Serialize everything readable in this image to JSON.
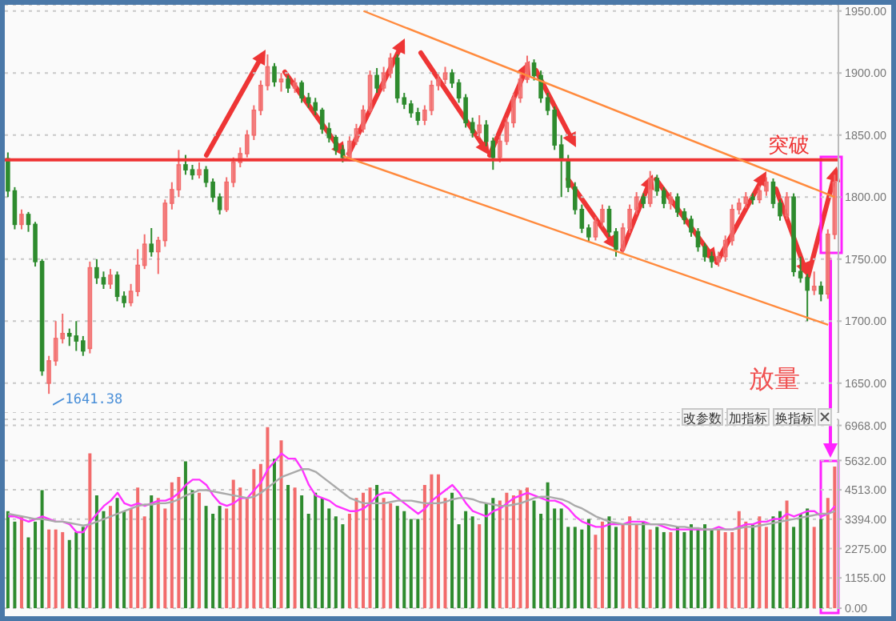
{
  "chart_data": [
    {
      "type": "candlestick",
      "categories": [
        null,
        null,
        null,
        null,
        null,
        null,
        null,
        null,
        null,
        null,
        null,
        null,
        null,
        null,
        null,
        null,
        null,
        null,
        null,
        null,
        null,
        null,
        null,
        null,
        null,
        null,
        null,
        null,
        null,
        null,
        null,
        null,
        null,
        null,
        null,
        null,
        null,
        null,
        null,
        null,
        null,
        null,
        null,
        null,
        null,
        null,
        null,
        null,
        null,
        null,
        null,
        null,
        null,
        null,
        null,
        null,
        null,
        null,
        null,
        null,
        null,
        null,
        null,
        null,
        null,
        null,
        null,
        null,
        null,
        null,
        null,
        null,
        null,
        null,
        null,
        null,
        null,
        null,
        null,
        null,
        null,
        null,
        null,
        null,
        null,
        null,
        null,
        null,
        null,
        null,
        null,
        null,
        null,
        null,
        null,
        null,
        null,
        null,
        null,
        null,
        null,
        null,
        null,
        null,
        null,
        null,
        null,
        null,
        null,
        null,
        null,
        null,
        null,
        null,
        null,
        null,
        null,
        null,
        null,
        null,
        null,
        null
      ],
      "ohlc": [
        [
          1831,
          1836,
          1800,
          1805
        ],
        [
          1805,
          1808,
          1774,
          1778
        ],
        [
          1778,
          1790,
          1774,
          1786
        ],
        [
          1786,
          1788,
          1772,
          1778
        ],
        [
          1778,
          1780,
          1744,
          1748
        ],
        [
          1748,
          1750,
          1656,
          1660
        ],
        [
          1650,
          1672,
          1641.38,
          1668
        ],
        [
          1668,
          1700,
          1664,
          1686
        ],
        [
          1686,
          1706,
          1682,
          1690
        ],
        [
          1690,
          1694,
          1680,
          1688
        ],
        [
          1688,
          1700,
          1676,
          1684
        ],
        [
          1684,
          1688,
          1672,
          1676
        ],
        [
          1678,
          1748,
          1674,
          1743
        ],
        [
          1743,
          1750,
          1730,
          1735
        ],
        [
          1735,
          1740,
          1726,
          1730
        ],
        [
          1730,
          1742,
          1726,
          1737
        ],
        [
          1737,
          1740,
          1716,
          1720
        ],
        [
          1720,
          1724,
          1711,
          1715
        ],
        [
          1715,
          1730,
          1712,
          1724
        ],
        [
          1724,
          1758,
          1720,
          1745
        ],
        [
          1745,
          1770,
          1742,
          1762
        ],
        [
          1762,
          1775,
          1752,
          1756
        ],
        [
          1756,
          1768,
          1738,
          1765
        ],
        [
          1765,
          1798,
          1760,
          1795
        ],
        [
          1795,
          1812,
          1790,
          1806
        ],
        [
          1806,
          1838,
          1800,
          1826
        ],
        [
          1826,
          1834,
          1818,
          1822
        ],
        [
          1822,
          1826,
          1814,
          1818
        ],
        [
          1818,
          1828,
          1815,
          1822
        ],
        [
          1822,
          1825,
          1808,
          1812
        ],
        [
          1812,
          1815,
          1796,
          1800
        ],
        [
          1800,
          1803,
          1786,
          1790
        ],
        [
          1790,
          1816,
          1788,
          1812
        ],
        [
          1812,
          1832,
          1808,
          1828
        ],
        [
          1828,
          1840,
          1824,
          1835
        ],
        [
          1835,
          1854,
          1832,
          1850
        ],
        [
          1850,
          1874,
          1846,
          1870
        ],
        [
          1870,
          1894,
          1866,
          1890
        ],
        [
          1890,
          1915,
          1886,
          1905
        ],
        [
          1905,
          1908,
          1889,
          1893
        ],
        [
          1893,
          1900,
          1885,
          1895
        ],
        [
          1895,
          1898,
          1884,
          1888
        ],
        [
          1888,
          1896,
          1884,
          1892
        ],
        [
          1892,
          1894,
          1876,
          1880
        ],
        [
          1880,
          1884,
          1872,
          1876
        ],
        [
          1876,
          1880,
          1866,
          1870
        ],
        [
          1870,
          1872,
          1851,
          1855
        ],
        [
          1855,
          1860,
          1844,
          1848
        ],
        [
          1848,
          1850,
          1834,
          1838
        ],
        [
          1838,
          1842,
          1828,
          1832
        ],
        [
          1832,
          1849,
          1829,
          1845
        ],
        [
          1845,
          1859,
          1842,
          1855
        ],
        [
          1855,
          1874,
          1852,
          1870
        ],
        [
          1870,
          1902,
          1868,
          1898
        ],
        [
          1898,
          1904,
          1884,
          1888
        ],
        [
          1888,
          1905,
          1885,
          1900
        ],
        [
          1900,
          1916,
          1896,
          1912
        ],
        [
          1912,
          1915,
          1876,
          1880
        ],
        [
          1880,
          1884,
          1871,
          1875
        ],
        [
          1875,
          1878,
          1864,
          1868
        ],
        [
          1868,
          1872,
          1858,
          1862
        ],
        [
          1862,
          1874,
          1858,
          1870
        ],
        [
          1870,
          1894,
          1866,
          1890
        ],
        [
          1890,
          1899,
          1886,
          1895
        ],
        [
          1895,
          1905,
          1891,
          1900
        ],
        [
          1900,
          1903,
          1888,
          1892
        ],
        [
          1892,
          1895,
          1876,
          1880
        ],
        [
          1880,
          1883,
          1856,
          1860
        ],
        [
          1860,
          1864,
          1848,
          1852
        ],
        [
          1852,
          1866,
          1848,
          1858
        ],
        [
          1858,
          1862,
          1841,
          1845
        ],
        [
          1845,
          1848,
          1822,
          1832
        ],
        [
          1832,
          1849,
          1828,
          1845
        ],
        [
          1845,
          1864,
          1842,
          1860
        ],
        [
          1860,
          1884,
          1856,
          1880
        ],
        [
          1880,
          1899,
          1876,
          1895
        ],
        [
          1895,
          1914,
          1892,
          1908
        ],
        [
          1908,
          1911,
          1894,
          1898
        ],
        [
          1898,
          1902,
          1876,
          1880
        ],
        [
          1880,
          1884,
          1866,
          1870
        ],
        [
          1870,
          1873,
          1838,
          1842
        ],
        [
          1842,
          1850,
          1800,
          1830
        ],
        [
          1830,
          1834,
          1804,
          1808
        ],
        [
          1808,
          1812,
          1786,
          1790
        ],
        [
          1790,
          1794,
          1771,
          1775
        ],
        [
          1775,
          1778,
          1764,
          1768
        ],
        [
          1768,
          1784,
          1765,
          1780
        ],
        [
          1780,
          1794,
          1776,
          1790
        ],
        [
          1790,
          1793,
          1768,
          1772
        ],
        [
          1772,
          1775,
          1752,
          1758
        ],
        [
          1758,
          1779,
          1755,
          1775
        ],
        [
          1775,
          1794,
          1771,
          1790
        ],
        [
          1790,
          1804,
          1786,
          1800
        ],
        [
          1800,
          1803,
          1791,
          1795
        ],
        [
          1795,
          1821,
          1792,
          1815
        ],
        [
          1815,
          1818,
          1801,
          1805
        ],
        [
          1805,
          1808,
          1791,
          1795
        ],
        [
          1795,
          1804,
          1790,
          1800
        ],
        [
          1800,
          1803,
          1784,
          1788
        ],
        [
          1788,
          1791,
          1778,
          1782
        ],
        [
          1782,
          1785,
          1768,
          1772
        ],
        [
          1772,
          1775,
          1756,
          1760
        ],
        [
          1760,
          1763,
          1748,
          1752
        ],
        [
          1752,
          1756,
          1743,
          1748
        ],
        [
          1748,
          1756,
          1744,
          1752
        ],
        [
          1752,
          1769,
          1748,
          1765
        ],
        [
          1765,
          1794,
          1761,
          1790
        ],
        [
          1790,
          1799,
          1786,
          1795
        ],
        [
          1795,
          1804,
          1791,
          1800
        ],
        [
          1800,
          1803,
          1794,
          1798
        ],
        [
          1798,
          1809,
          1795,
          1805
        ],
        [
          1805,
          1816,
          1801,
          1812
        ],
        [
          1812,
          1815,
          1791,
          1795
        ],
        [
          1795,
          1798,
          1781,
          1785
        ],
        [
          1785,
          1804,
          1782,
          1800
        ],
        [
          1800,
          1803,
          1736,
          1740
        ],
        [
          1740,
          1752,
          1731,
          1735
        ],
        [
          1735,
          1738,
          1700,
          1725
        ],
        [
          1725,
          1740,
          1721,
          1728
        ],
        [
          1728,
          1732,
          1716,
          1722
        ],
        [
          1722,
          1774,
          1718,
          1770
        ],
        [
          1770,
          1818,
          1766,
          1812
        ]
      ],
      "colors": [
        "#2e8b2e",
        "#2e8b2e",
        "#f26b6b",
        "#2e8b2e",
        "#2e8b2e",
        "#2e8b2e",
        "#f26b6b",
        "#f26b6b",
        "#f26b6b",
        "#2e8b2e",
        "#2e8b2e",
        "#2e8b2e",
        "#f26b6b",
        "#2e8b2e",
        "#2e8b2e",
        "#f26b6b",
        "#2e8b2e",
        "#2e8b2e",
        "#f26b6b",
        "#f26b6b",
        "#f26b6b",
        "#2e8b2e",
        "#f26b6b",
        "#f26b6b",
        "#f26b6b",
        "#f26b6b",
        "#2e8b2e",
        "#2e8b2e",
        "#f26b6b",
        "#2e8b2e",
        "#2e8b2e",
        "#2e8b2e",
        "#f26b6b",
        "#f26b6b",
        "#f26b6b",
        "#f26b6b",
        "#f26b6b",
        "#f26b6b",
        "#f26b6b",
        "#2e8b2e",
        "#f26b6b",
        "#2e8b2e",
        "#f26b6b",
        "#2e8b2e",
        "#2e8b2e",
        "#2e8b2e",
        "#2e8b2e",
        "#2e8b2e",
        "#2e8b2e",
        "#2e8b2e",
        "#f26b6b",
        "#f26b6b",
        "#f26b6b",
        "#f26b6b",
        "#2e8b2e",
        "#f26b6b",
        "#f26b6b",
        "#2e8b2e",
        "#2e8b2e",
        "#2e8b2e",
        "#2e8b2e",
        "#f26b6b",
        "#f26b6b",
        "#f26b6b",
        "#f26b6b",
        "#2e8b2e",
        "#2e8b2e",
        "#2e8b2e",
        "#2e8b2e",
        "#f26b6b",
        "#2e8b2e",
        "#2e8b2e",
        "#f26b6b",
        "#f26b6b",
        "#f26b6b",
        "#f26b6b",
        "#f26b6b",
        "#2e8b2e",
        "#2e8b2e",
        "#2e8b2e",
        "#2e8b2e",
        "#2e8b2e",
        "#2e8b2e",
        "#2e8b2e",
        "#2e8b2e",
        "#2e8b2e",
        "#f26b6b",
        "#f26b6b",
        "#2e8b2e",
        "#2e8b2e",
        "#f26b6b",
        "#f26b6b",
        "#f26b6b",
        "#2e8b2e",
        "#f26b6b",
        "#2e8b2e",
        "#2e8b2e",
        "#f26b6b",
        "#2e8b2e",
        "#2e8b2e",
        "#2e8b2e",
        "#2e8b2e",
        "#2e8b2e",
        "#2e8b2e",
        "#f26b6b",
        "#f26b6b",
        "#f26b6b",
        "#f26b6b",
        "#f26b6b",
        "#2e8b2e",
        "#f26b6b",
        "#f26b6b",
        "#2e8b2e",
        "#2e8b2e",
        "#f26b6b",
        "#2e8b2e",
        "#2e8b2e",
        "#2e8b2e",
        "#f26b6b",
        "#2e8b2e",
        "#f26b6b",
        "#f26b6b"
      ],
      "series": [
        {
          "type": "line",
          "color": "#ff8a3d",
          "values": [
            null,
            null,
            null,
            null,
            null,
            null,
            null,
            null,
            null,
            null,
            null,
            null,
            null,
            null,
            null,
            null,
            null,
            null,
            null,
            null,
            null,
            null,
            null,
            null,
            null,
            null,
            null,
            null,
            null,
            null,
            null,
            null,
            null,
            null,
            null,
            null,
            null,
            null,
            null,
            null,
            null,
            null,
            null,
            null,
            null,
            null,
            null,
            null,
            null,
            null,
            null,
            null,
            1950,
            null,
            null,
            null,
            null,
            null,
            null,
            null,
            null,
            null,
            null,
            null,
            null,
            null,
            null,
            null,
            null,
            null,
            null,
            null,
            null,
            null,
            null,
            null,
            null,
            null,
            null,
            null,
            null,
            null,
            null,
            null,
            null,
            null,
            null,
            null,
            null,
            null,
            null,
            null,
            null,
            null,
            null,
            null,
            null,
            null,
            null,
            null,
            null,
            null,
            null,
            null,
            null,
            null,
            null,
            null,
            null,
            null,
            null,
            null,
            null,
            null,
            null,
            null,
            null,
            null,
            null,
            null,
            null,
            1800
          ]
        },
        {
          "type": "line",
          "color": "#ff8a3d",
          "values": [
            null,
            null,
            null,
            null,
            null,
            null,
            null,
            null,
            null,
            null,
            null,
            null,
            null,
            null,
            null,
            null,
            null,
            null,
            null,
            null,
            null,
            null,
            null,
            null,
            null,
            null,
            null,
            null,
            null,
            null,
            null,
            null,
            null,
            null,
            null,
            null,
            null,
            null,
            null,
            null,
            null,
            null,
            null,
            null,
            null,
            null,
            null,
            null,
            null,
            1833,
            null,
            null,
            null,
            null,
            null,
            null,
            null,
            null,
            null,
            null,
            null,
            null,
            null,
            null,
            null,
            null,
            null,
            null,
            null,
            null,
            null,
            null,
            null,
            null,
            null,
            null,
            null,
            null,
            null,
            null,
            null,
            null,
            null,
            null,
            null,
            null,
            null,
            null,
            null,
            null,
            null,
            null,
            null,
            null,
            null,
            null,
            null,
            null,
            null,
            null,
            null,
            null,
            null,
            null,
            null,
            null,
            null,
            null,
            null,
            null,
            null,
            null,
            null,
            null,
            null,
            null,
            null,
            null,
            null,
            null,
            1697,
            null
          ]
        }
      ],
      "ylim": [
        1626,
        1955
      ],
      "yticks": [
        {
          "value": 1650,
          "label": "1650.00"
        },
        {
          "value": 1700,
          "label": "1700.00"
        },
        {
          "value": 1750,
          "label": "1750.00"
        },
        {
          "value": 1800,
          "label": "1800.00"
        },
        {
          "value": 1850,
          "label": "1850.00"
        },
        {
          "value": 1900,
          "label": "1900.00"
        },
        {
          "value": 1950,
          "label": "1950.00"
        }
      ],
      "grid": "y",
      "tick_labels": "y",
      "ref_lines": [
        {
          "axis": "y",
          "value": 1830,
          "label": "突破",
          "color": "#ee3333"
        }
      ],
      "annotations": [
        "1641.38"
      ]
    },
    {
      "type": "bar",
      "categories": [
        null,
        null,
        null,
        null,
        null,
        null,
        null,
        null,
        null,
        null,
        null,
        null,
        null,
        null,
        null,
        null,
        null,
        null,
        null,
        null,
        null,
        null,
        null,
        null,
        null,
        null,
        null,
        null,
        null,
        null,
        null,
        null,
        null,
        null,
        null,
        null,
        null,
        null,
        null,
        null,
        null,
        null,
        null,
        null,
        null,
        null,
        null,
        null,
        null,
        null,
        null,
        null,
        null,
        null,
        null,
        null,
        null,
        null,
        null,
        null,
        null,
        null,
        null,
        null,
        null,
        null,
        null,
        null,
        null,
        null,
        null,
        null,
        null,
        null,
        null,
        null,
        null,
        null,
        null,
        null,
        null,
        null,
        null,
        null,
        null,
        null,
        null,
        null,
        null,
        null,
        null,
        null,
        null,
        null,
        null,
        null,
        null,
        null,
        null,
        null,
        null,
        null,
        null,
        null,
        null,
        null,
        null,
        null,
        null,
        null,
        null,
        null,
        null,
        null,
        null,
        null,
        null,
        null,
        null,
        null,
        null,
        null
      ],
      "series": [
        {
          "values": [
            3700,
            3300,
            3500,
            2700,
            3300,
            4500,
            3000,
            3000,
            2900,
            2600,
            2900,
            3100,
            5900,
            4300,
            3700,
            3900,
            4200,
            3700,
            3800,
            4600,
            3500,
            4300,
            4200,
            3800,
            4800,
            5000,
            5600,
            4500,
            4400,
            3900,
            3600,
            3900,
            3800,
            4900,
            4600,
            4200,
            5300,
            5500,
            6900,
            5700,
            6400,
            4700,
            4600,
            4300,
            3600,
            4400,
            4200,
            3800,
            3500,
            3200,
            3600,
            4200,
            4400,
            4600,
            4700,
            4200,
            4000,
            3900,
            3700,
            3400,
            3400,
            4700,
            5100,
            5100,
            4200,
            4400,
            3200,
            3700,
            3500,
            3200,
            4000,
            4200,
            4100,
            4400,
            4300,
            4500,
            4600,
            4100,
            3600,
            4800,
            3800,
            3800,
            3100,
            3100,
            3000,
            3400,
            2800,
            3300,
            3500,
            3100,
            3200,
            3500,
            3200,
            3300,
            3000,
            3100,
            2900,
            2900,
            3100,
            2900,
            3200,
            3000,
            3200,
            3000,
            3000,
            2900,
            2900,
            3700,
            3300,
            3200,
            3500,
            3100,
            3500,
            3700,
            4100,
            3100,
            3600,
            3800,
            3100,
            3400,
            4200,
            5400
          ],
          "colors": [
            "#2e8b2e",
            "#2e8b2e",
            "#f26b6b",
            "#2e8b2e",
            "#2e8b2e",
            "#2e8b2e",
            "#f26b6b",
            "#f26b6b",
            "#f26b6b",
            "#2e8b2e",
            "#2e8b2e",
            "#2e8b2e",
            "#f26b6b",
            "#2e8b2e",
            "#2e8b2e",
            "#f26b6b",
            "#2e8b2e",
            "#2e8b2e",
            "#f26b6b",
            "#f26b6b",
            "#f26b6b",
            "#2e8b2e",
            "#f26b6b",
            "#f26b6b",
            "#f26b6b",
            "#f26b6b",
            "#2e8b2e",
            "#2e8b2e",
            "#f26b6b",
            "#2e8b2e",
            "#2e8b2e",
            "#2e8b2e",
            "#f26b6b",
            "#f26b6b",
            "#f26b6b",
            "#f26b6b",
            "#f26b6b",
            "#f26b6b",
            "#f26b6b",
            "#2e8b2e",
            "#f26b6b",
            "#2e8b2e",
            "#f26b6b",
            "#2e8b2e",
            "#2e8b2e",
            "#2e8b2e",
            "#2e8b2e",
            "#2e8b2e",
            "#2e8b2e",
            "#2e8b2e",
            "#f26b6b",
            "#f26b6b",
            "#f26b6b",
            "#f26b6b",
            "#2e8b2e",
            "#f26b6b",
            "#f26b6b",
            "#2e8b2e",
            "#2e8b2e",
            "#2e8b2e",
            "#2e8b2e",
            "#f26b6b",
            "#f26b6b",
            "#f26b6b",
            "#f26b6b",
            "#2e8b2e",
            "#2e8b2e",
            "#2e8b2e",
            "#2e8b2e",
            "#f26b6b",
            "#2e8b2e",
            "#2e8b2e",
            "#f26b6b",
            "#f26b6b",
            "#f26b6b",
            "#f26b6b",
            "#f26b6b",
            "#2e8b2e",
            "#2e8b2e",
            "#2e8b2e",
            "#2e8b2e",
            "#2e8b2e",
            "#2e8b2e",
            "#2e8b2e",
            "#2e8b2e",
            "#2e8b2e",
            "#f26b6b",
            "#f26b6b",
            "#2e8b2e",
            "#2e8b2e",
            "#f26b6b",
            "#f26b6b",
            "#f26b6b",
            "#2e8b2e",
            "#f26b6b",
            "#2e8b2e",
            "#2e8b2e",
            "#f26b6b",
            "#2e8b2e",
            "#2e8b2e",
            "#2e8b2e",
            "#2e8b2e",
            "#2e8b2e",
            "#2e8b2e",
            "#f26b6b",
            "#f26b6b",
            "#f26b6b",
            "#f26b6b",
            "#f26b6b",
            "#2e8b2e",
            "#f26b6b",
            "#f26b6b",
            "#2e8b2e",
            "#2e8b2e",
            "#f26b6b",
            "#2e8b2e",
            "#2e8b2e",
            "#2e8b2e",
            "#f26b6b",
            "#2e8b2e",
            "#f26b6b",
            "#f26b6b"
          ]
        },
        {
          "type": "line",
          "color": "#ff33ff",
          "values": [
            3500,
            3500,
            3400,
            3300,
            3400,
            3500,
            3400,
            3300,
            3300,
            3200,
            2900,
            2900,
            3300,
            3600,
            3900,
            4100,
            4400,
            4000,
            3900,
            4000,
            3900,
            4000,
            4100,
            4100,
            4200,
            4400,
            4700,
            4900,
            4900,
            4700,
            4300,
            4000,
            3900,
            4000,
            4200,
            4200,
            4500,
            4800,
            5300,
            5600,
            5900,
            5700,
            5700,
            5300,
            4700,
            4300,
            4200,
            4100,
            3900,
            3800,
            3700,
            3700,
            3800,
            4000,
            4300,
            4400,
            4400,
            4200,
            4000,
            3800,
            3600,
            3800,
            4100,
            4300,
            4500,
            4700,
            4400,
            4000,
            3700,
            3600,
            3500,
            3700,
            3800,
            4000,
            4200,
            4300,
            4400,
            4300,
            4200,
            4100,
            4100,
            4000,
            3800,
            3500,
            3300,
            3200,
            3100,
            3100,
            3200,
            3200,
            3200,
            3300,
            3300,
            3300,
            3200,
            3200,
            3100,
            3000,
            3000,
            3000,
            3000,
            3000,
            3000,
            3000,
            3100,
            3000,
            3000,
            3100,
            3200,
            3200,
            3300,
            3300,
            3400,
            3400,
            3600,
            3500,
            3600,
            3700,
            3700,
            3500,
            3600,
            3900
          ]
        },
        {
          "type": "line",
          "color": "#aaaaaa",
          "values": [
            3600,
            3550,
            3500,
            3450,
            3400,
            3400,
            3350,
            3300,
            3300,
            3250,
            3200,
            3150,
            3200,
            3300,
            3400,
            3500,
            3600,
            3700,
            3800,
            3900,
            3950,
            3950,
            4000,
            4000,
            4050,
            4150,
            4300,
            4400,
            4500,
            4500,
            4450,
            4400,
            4350,
            4300,
            4250,
            4200,
            4250,
            4400,
            4600,
            4800,
            5000,
            5100,
            5200,
            5300,
            5300,
            5200,
            5000,
            4800,
            4600,
            4400,
            4200,
            4100,
            4000,
            4000,
            4000,
            4000,
            4050,
            4100,
            4100,
            4100,
            4050,
            4000,
            4000,
            4000,
            4050,
            4150,
            4200,
            4200,
            4150,
            4050,
            4000,
            3950,
            3900,
            3900,
            3950,
            4000,
            4100,
            4200,
            4250,
            4250,
            4200,
            4150,
            4050,
            3900,
            3800,
            3650,
            3500,
            3400,
            3300,
            3250,
            3200,
            3200,
            3200,
            3200,
            3200,
            3200,
            3200,
            3150,
            3100,
            3100,
            3050,
            3050,
            3000,
            3000,
            3000,
            3000,
            3000,
            3050,
            3100,
            3100,
            3150,
            3200,
            3250,
            3300,
            3350,
            3400,
            3450,
            3500,
            3550,
            3600,
            3600,
            3700
          ]
        }
      ],
      "ylim": [
        0,
        7200
      ],
      "yticks": [
        {
          "value": 0,
          "label": "0.00"
        },
        {
          "value": 1155,
          "label": "1155.00"
        },
        {
          "value": 2275,
          "label": "2275.00"
        },
        {
          "value": 3394,
          "label": "3394.00"
        },
        {
          "value": 4513,
          "label": "4513.00"
        },
        {
          "value": 5632,
          "label": "5632.00"
        },
        {
          "value": 6968,
          "label": "6968.00"
        }
      ],
      "grid": "y",
      "tick_labels": "y",
      "annotations": [
        "放量",
        "改参数",
        "加指标",
        "换指标"
      ]
    }
  ]
}
